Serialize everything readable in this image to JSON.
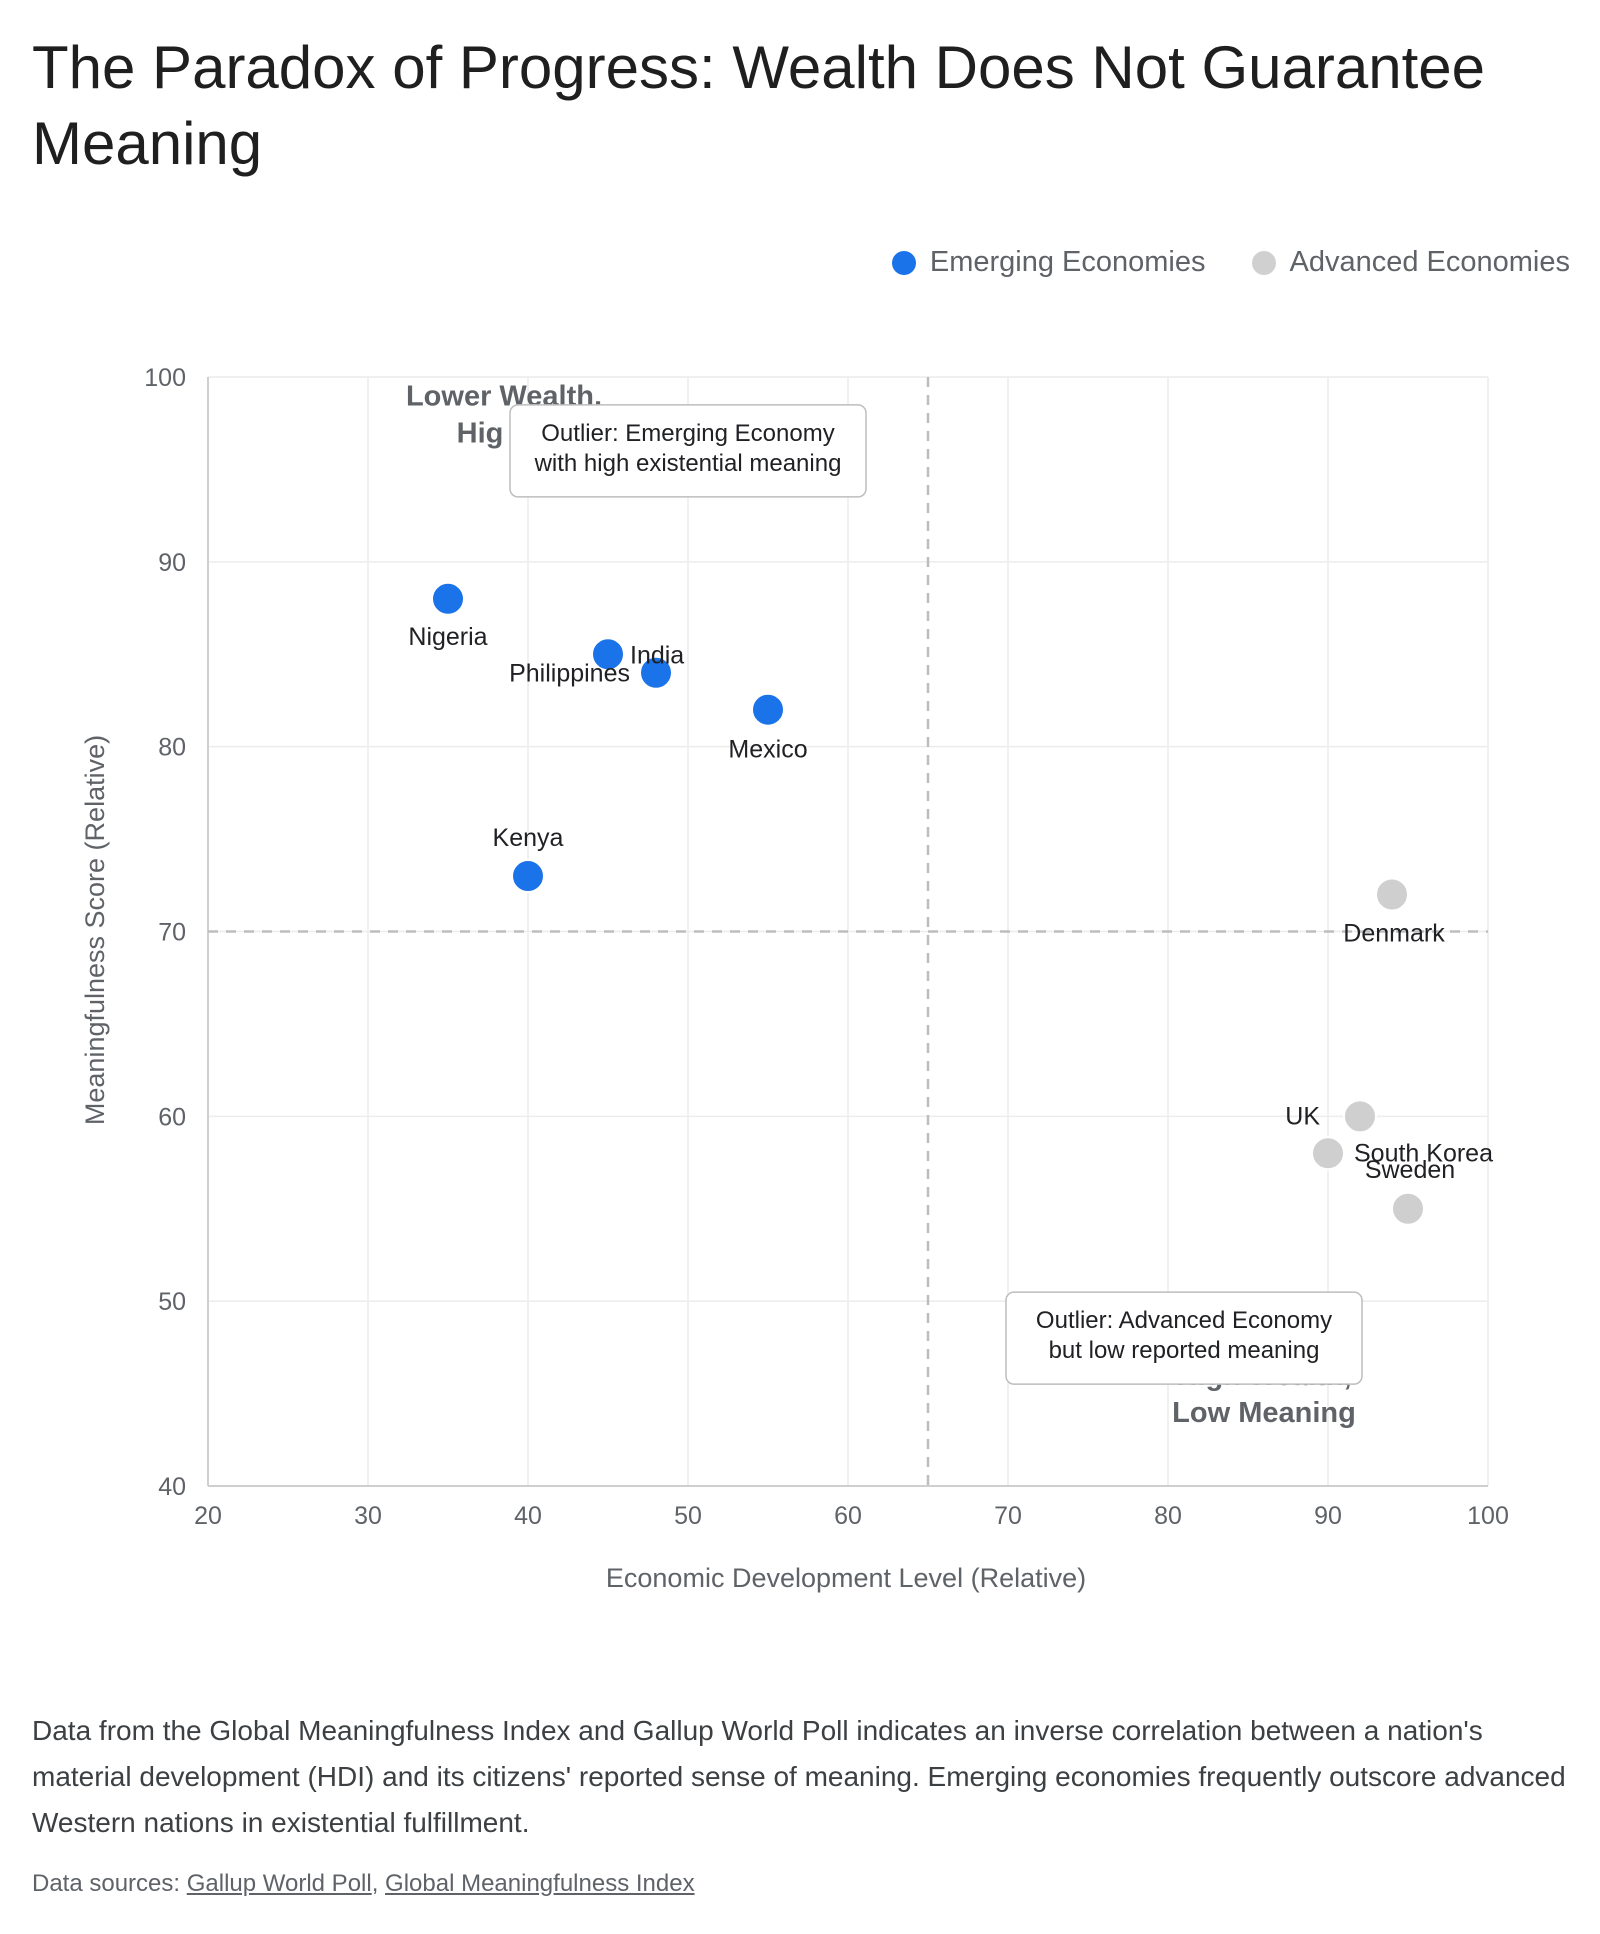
{
  "title": "The Paradox of Progress: Wealth Does Not Guarantee Meaning",
  "legend": [
    {
      "name": "Emerging Economies",
      "color": "#1a73e8"
    },
    {
      "name": "Advanced Economies",
      "color": "#d0d0d0"
    }
  ],
  "chart_data": {
    "type": "scatter",
    "xlabel": "Economic Development Level (Relative)",
    "ylabel": "Meaningfulness Score (Relative)",
    "xlim": [
      20,
      100
    ],
    "ylim": [
      40,
      100
    ],
    "x_ticks": [
      20,
      30,
      40,
      50,
      60,
      70,
      80,
      90,
      100
    ],
    "y_ticks": [
      40,
      50,
      60,
      70,
      80,
      90,
      100
    ],
    "grid": true,
    "reference_lines": {
      "x": 65,
      "y": 70
    },
    "series": [
      {
        "name": "Emerging Economies",
        "color": "#1a73e8",
        "points": [
          {
            "label": "Nigeria",
            "x": 35,
            "y": 88
          },
          {
            "label": "Philippines",
            "x": 45,
            "y": 85
          },
          {
            "label": "India",
            "x": 48,
            "y": 84
          },
          {
            "label": "Mexico",
            "x": 55,
            "y": 82
          },
          {
            "label": "Kenya",
            "x": 40,
            "y": 73
          }
        ]
      },
      {
        "name": "Advanced Economies",
        "color": "#cfcfcf",
        "points": [
          {
            "label": "Denmark",
            "x": 94,
            "y": 72
          },
          {
            "label": "UK",
            "x": 92,
            "y": 60
          },
          {
            "label": "South Korea",
            "x": 90,
            "y": 58
          },
          {
            "label": "Sweden",
            "x": 95,
            "y": 55
          }
        ]
      }
    ],
    "quadrant_labels": [
      {
        "text": "Lower Wealth,",
        "x": 38.5,
        "y": 99
      },
      {
        "text": "Hig",
        "x": 37,
        "y": 97
      },
      {
        "text": "High Wealth,",
        "x": 86,
        "y": 46
      },
      {
        "text": "Low Meaning",
        "x": 86,
        "y": 44
      }
    ],
    "annotations": [
      {
        "lines": [
          "Outlier: Emerging Economy",
          "with high existential meaning"
        ],
        "x": 50,
        "y": 96
      },
      {
        "lines": [
          "Outlier: Advanced Economy",
          "but low reported meaning"
        ],
        "x": 81,
        "y": 48
      }
    ]
  },
  "description": "Data from the Global Meaningfulness Index and Gallup World Poll indicates an inverse correlation between a nation's material development (HDI) and its citizens' reported sense of meaning. Emerging economies frequently outscore advanced Western nations in existential fulfillment.",
  "sources": {
    "prefix": "Data sources: ",
    "links": [
      "Gallup World Poll",
      "Global Meaningfulness Index"
    ],
    "separator": ", "
  }
}
